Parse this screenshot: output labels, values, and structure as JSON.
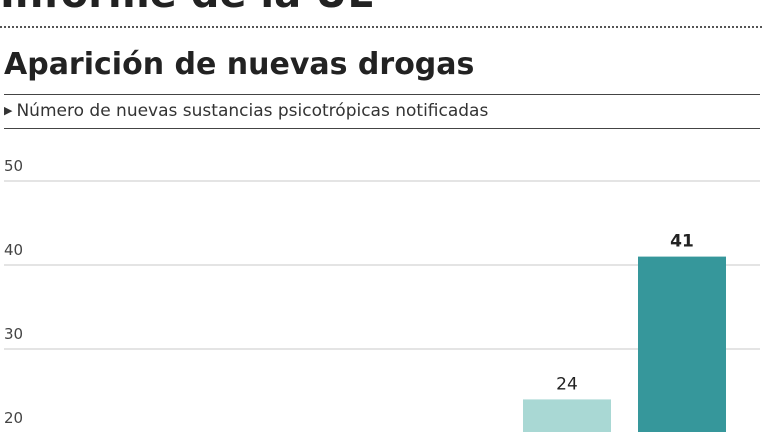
{
  "header": {
    "section_title": "Informe de la UE"
  },
  "chart_data": {
    "type": "bar",
    "title": "Aparición de nuevas drogas",
    "subtitle": "Número de nuevas sustancias psicotrópicas notificadas",
    "xlabel": "",
    "ylabel": "",
    "y_ticks": [
      20,
      30,
      40,
      50
    ],
    "ylim": [
      20,
      50
    ],
    "grid": true,
    "bars": [
      {
        "value": 24,
        "label": "24",
        "color": "#a9d8d4",
        "bold": false
      },
      {
        "value": 41,
        "label": "41",
        "color": "#36979b",
        "bold": true
      }
    ]
  }
}
